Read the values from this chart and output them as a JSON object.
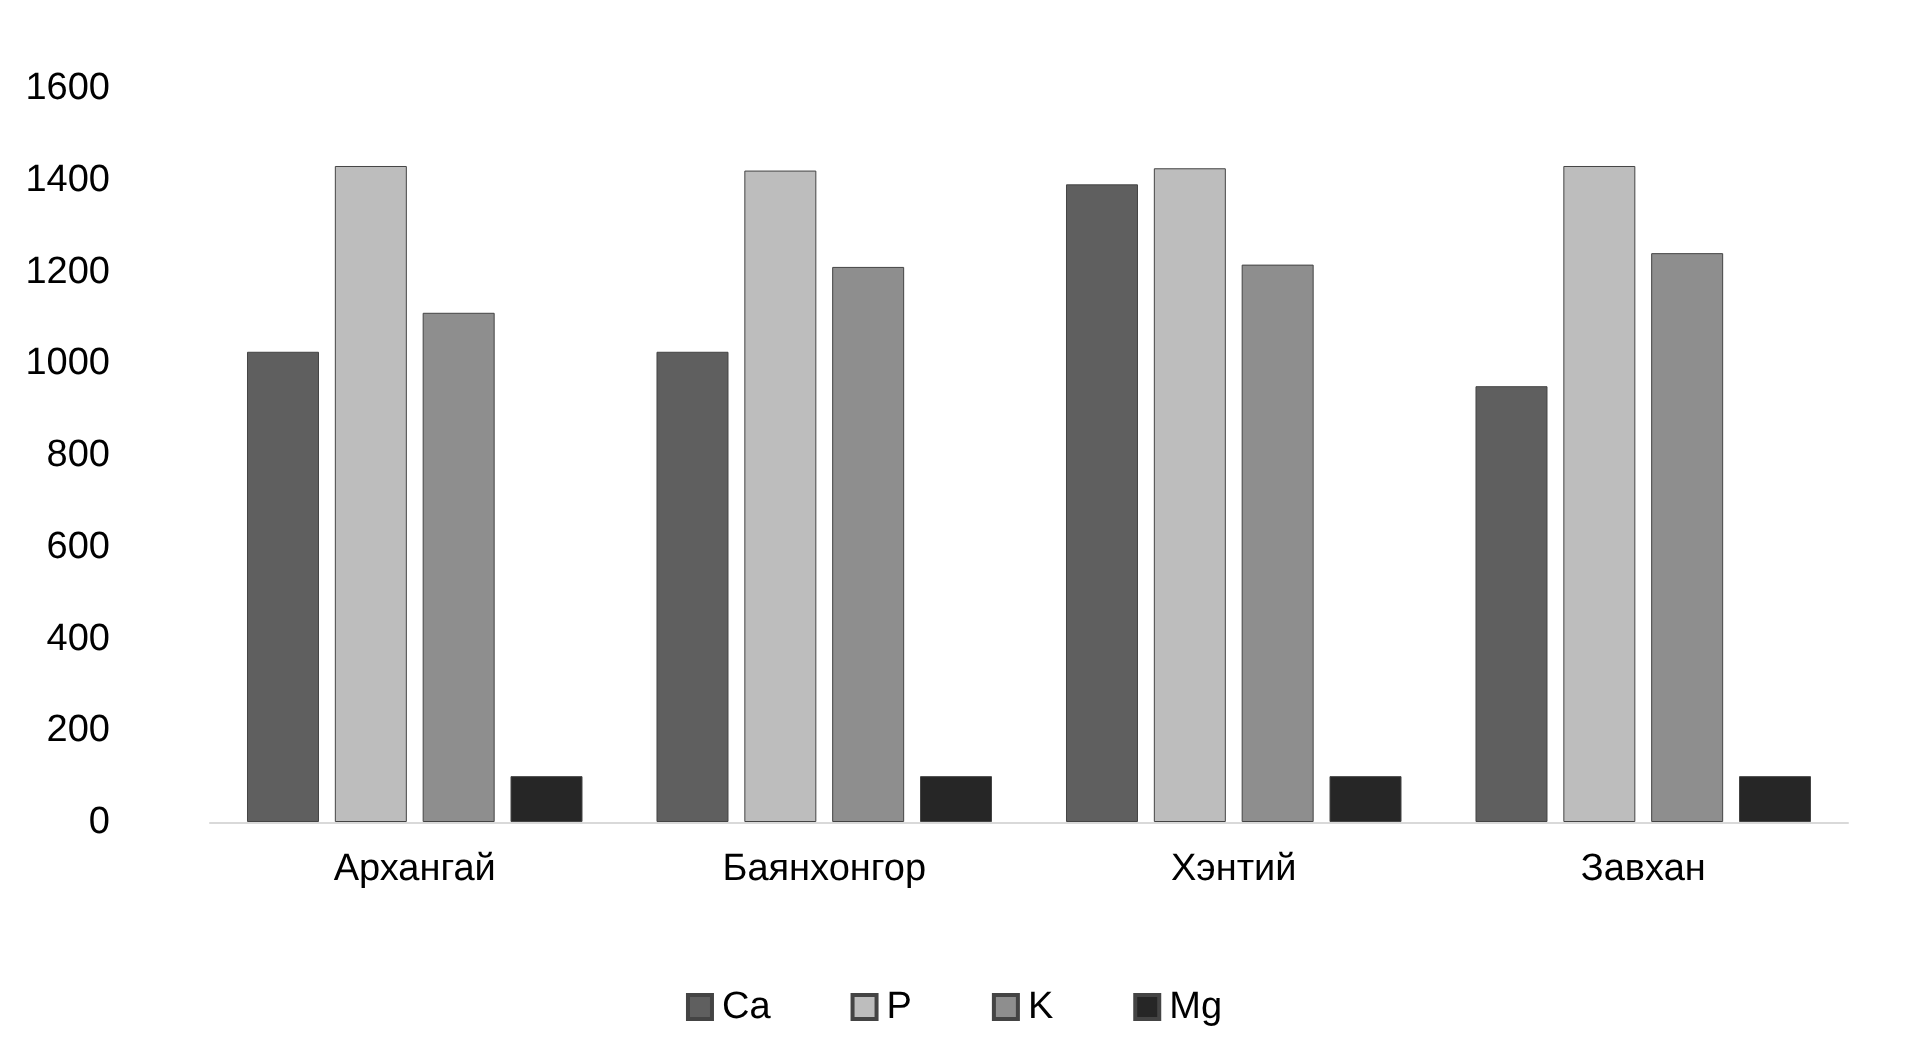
{
  "chart_data": {
    "type": "bar",
    "categories": [
      "Архангай",
      "Баянхонгор",
      "Хэнтий",
      "Завхан"
    ],
    "series": [
      {
        "name": "Ca",
        "color": "#5f5f5f",
        "values": [
          1025,
          1025,
          1390,
          950
        ]
      },
      {
        "name": "P",
        "color": "#bdbdbd",
        "values": [
          1430,
          1420,
          1425,
          1430
        ]
      },
      {
        "name": "K",
        "color": "#8e8e8e",
        "values": [
          1110,
          1210,
          1215,
          1240
        ]
      },
      {
        "name": "Mg",
        "color": "#262626",
        "values": [
          100,
          100,
          100,
          100
        ]
      }
    ],
    "ylim": [
      0,
      1600
    ],
    "yticks": [
      0,
      200,
      400,
      600,
      800,
      1000,
      1200,
      1400,
      1600
    ],
    "grid": false,
    "legend": "bottom"
  }
}
